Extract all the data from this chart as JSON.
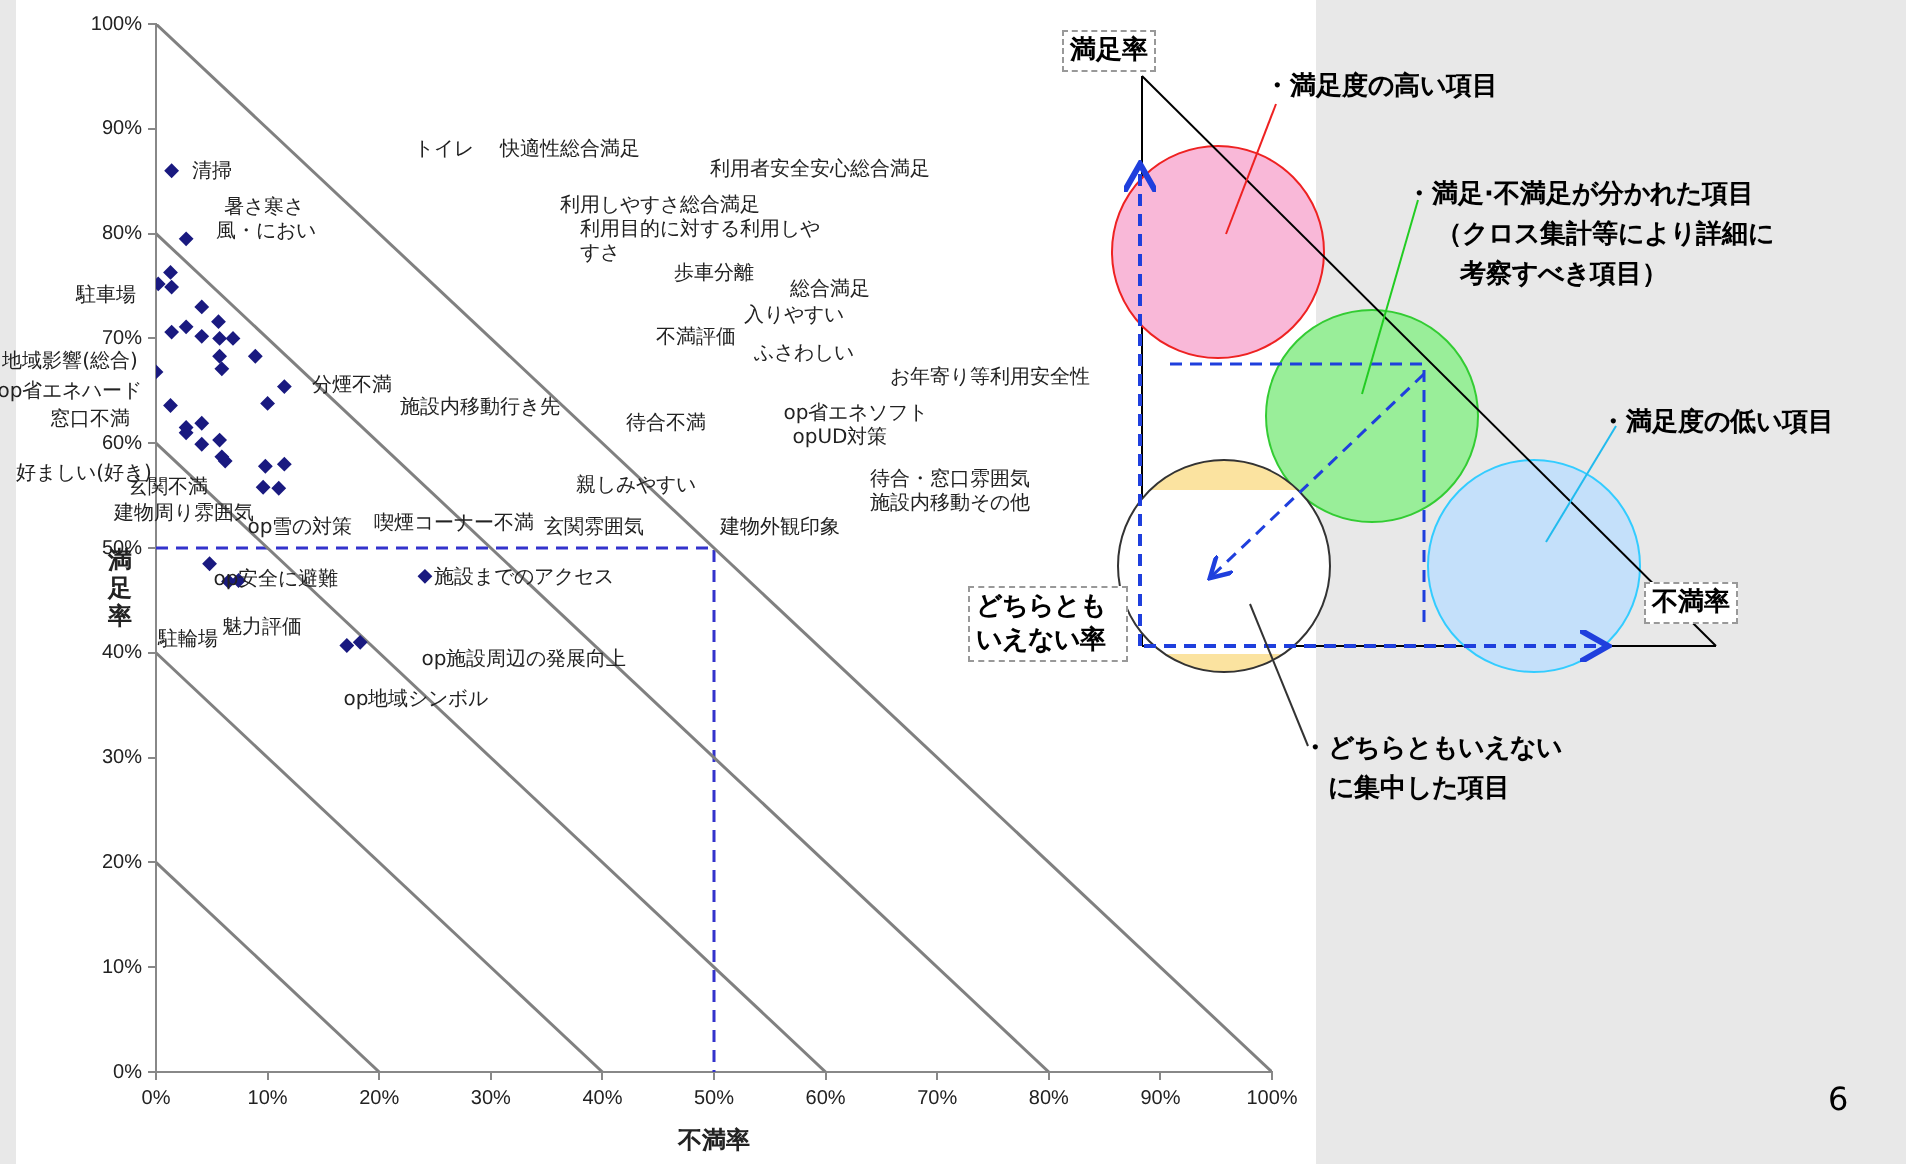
{
  "chart_data": [
    {
      "type": "scatter",
      "xlabel": "不満率",
      "ylabel": "満足率",
      "xlim": [
        0,
        100
      ],
      "ylim": [
        0,
        100
      ],
      "xticks": [
        {
          "value": 0,
          "label": "0%"
        },
        {
          "value": 10,
          "label": "10%"
        },
        {
          "value": 20,
          "label": "20%"
        },
        {
          "value": 30,
          "label": "30%"
        },
        {
          "value": 40,
          "label": "40%"
        },
        {
          "value": 50,
          "label": "50%"
        },
        {
          "value": 60,
          "label": "60%"
        },
        {
          "value": 70,
          "label": "70%"
        },
        {
          "value": 80,
          "label": "80%"
        },
        {
          "value": 90,
          "label": "90%"
        },
        {
          "value": 100,
          "label": "100%"
        }
      ],
      "yticks": [
        {
          "value": 0,
          "label": "0%"
        },
        {
          "value": 10,
          "label": "10%"
        },
        {
          "value": 20,
          "label": "20%"
        },
        {
          "value": 30,
          "label": "30%"
        },
        {
          "value": 40,
          "label": "40%"
        },
        {
          "value": 50,
          "label": "50%"
        },
        {
          "value": 60,
          "label": "60%"
        },
        {
          "value": 70,
          "label": "70%"
        },
        {
          "value": 80,
          "label": "80%"
        },
        {
          "value": 90,
          "label": "90%"
        },
        {
          "value": 100,
          "label": "100%"
        }
      ],
      "grid": false,
      "legend": false,
      "marker": "diamond",
      "series": [
        {
          "type": "scatter",
          "color": "#1a1a80",
          "x": [
            1.4,
            2.7,
            1.3,
            0.2,
            1.4,
            4.1,
            1.4,
            2.7,
            5.6,
            4.1,
            5.7,
            6.9,
            5.7,
            8.9,
            5.9,
            0,
            11.5,
            10.0,
            1.3,
            2.7,
            2.7,
            4.1,
            5.7,
            4.1,
            5.9,
            6.2,
            9.8,
            11.5,
            9.6,
            11.0,
            4.8,
            6.5,
            7.4,
            24.1,
            17.1,
            18.3
          ],
          "values": [
            86,
            79.5,
            76.3,
            75.2,
            74.9,
            73.0,
            70.6,
            71.1,
            71.6,
            70.2,
            70.0,
            70.0,
            68.3,
            68.3,
            67.1,
            66.8,
            65.4,
            63.8,
            63.6,
            61.5,
            61.0,
            61.9,
            60.3,
            59.9,
            58.7,
            58.3,
            57.8,
            58.0,
            55.8,
            55.7,
            48.5,
            46.8,
            46.9,
            47.3,
            40.7,
            41.0
          ]
        },
        {
          "type": "line",
          "color": "#808080",
          "marker": "none",
          "x": [
            0,
            20
          ],
          "values": [
            20,
            0
          ]
        },
        {
          "type": "line",
          "color": "#808080",
          "marker": "none",
          "x": [
            0,
            40
          ],
          "values": [
            40,
            0
          ]
        },
        {
          "type": "line",
          "color": "#808080",
          "marker": "none",
          "x": [
            0,
            60
          ],
          "values": [
            60,
            0
          ]
        },
        {
          "type": "line",
          "color": "#808080",
          "marker": "none",
          "x": [
            0,
            80
          ],
          "values": [
            80,
            0
          ]
        },
        {
          "type": "line",
          "color": "#808080",
          "marker": "none",
          "x": [
            0,
            100
          ],
          "values": [
            100,
            0
          ]
        },
        {
          "type": "line",
          "color": "#3333cc",
          "marker": "none",
          "line_style": "dashed",
          "x": [
            0,
            50,
            50
          ],
          "values": [
            50,
            50,
            0
          ]
        }
      ],
      "annotations": [
        "清掃",
        "暑さ寒さ",
        "風・におい",
        "トイレ",
        "快適性総合満足",
        "利用者安全安心総合満足",
        "利用しやすさ総合満足",
        "利用目的に対する利用しやすさ",
        "歩車分離",
        "総合満足",
        "入りやすい",
        "不満評価",
        "ふさわしい",
        "お年寄り等利用安全性",
        "分煙不満",
        "施設内移動行き先",
        "待合不満",
        "op省エネソフト",
        "opUD対策",
        "親しみやすい",
        "待合・窓口雰囲気",
        "施設内移動その他",
        "喫煙コーナー不満",
        "玄関雰囲気",
        "建物外観印象",
        "op雪の対策",
        "駐車場",
        "地域影響(総合)",
        "op省エネハード",
        "窓口不満",
        "好ましい(好き)",
        "玄関不満",
        "建物周り雰囲気",
        "op安全に避難",
        "施設までのアクセス",
        "駐輪場",
        "魅力評価",
        "op施設周辺の発展向上",
        "op地域シンボル"
      ]
    },
    {
      "type": "other",
      "annotations": [
        "満足率",
        "・満足度の高い項目",
        "・満足·不満足が分かれた項目",
        "（クロス集計等により詳細に",
        "考察すべき項目）",
        "・満足度の低い項目",
        "不満率",
        "どちらともいえない率",
        "・どちらともいえない",
        "に集中した項目",
        "6"
      ]
    }
  ]
}
